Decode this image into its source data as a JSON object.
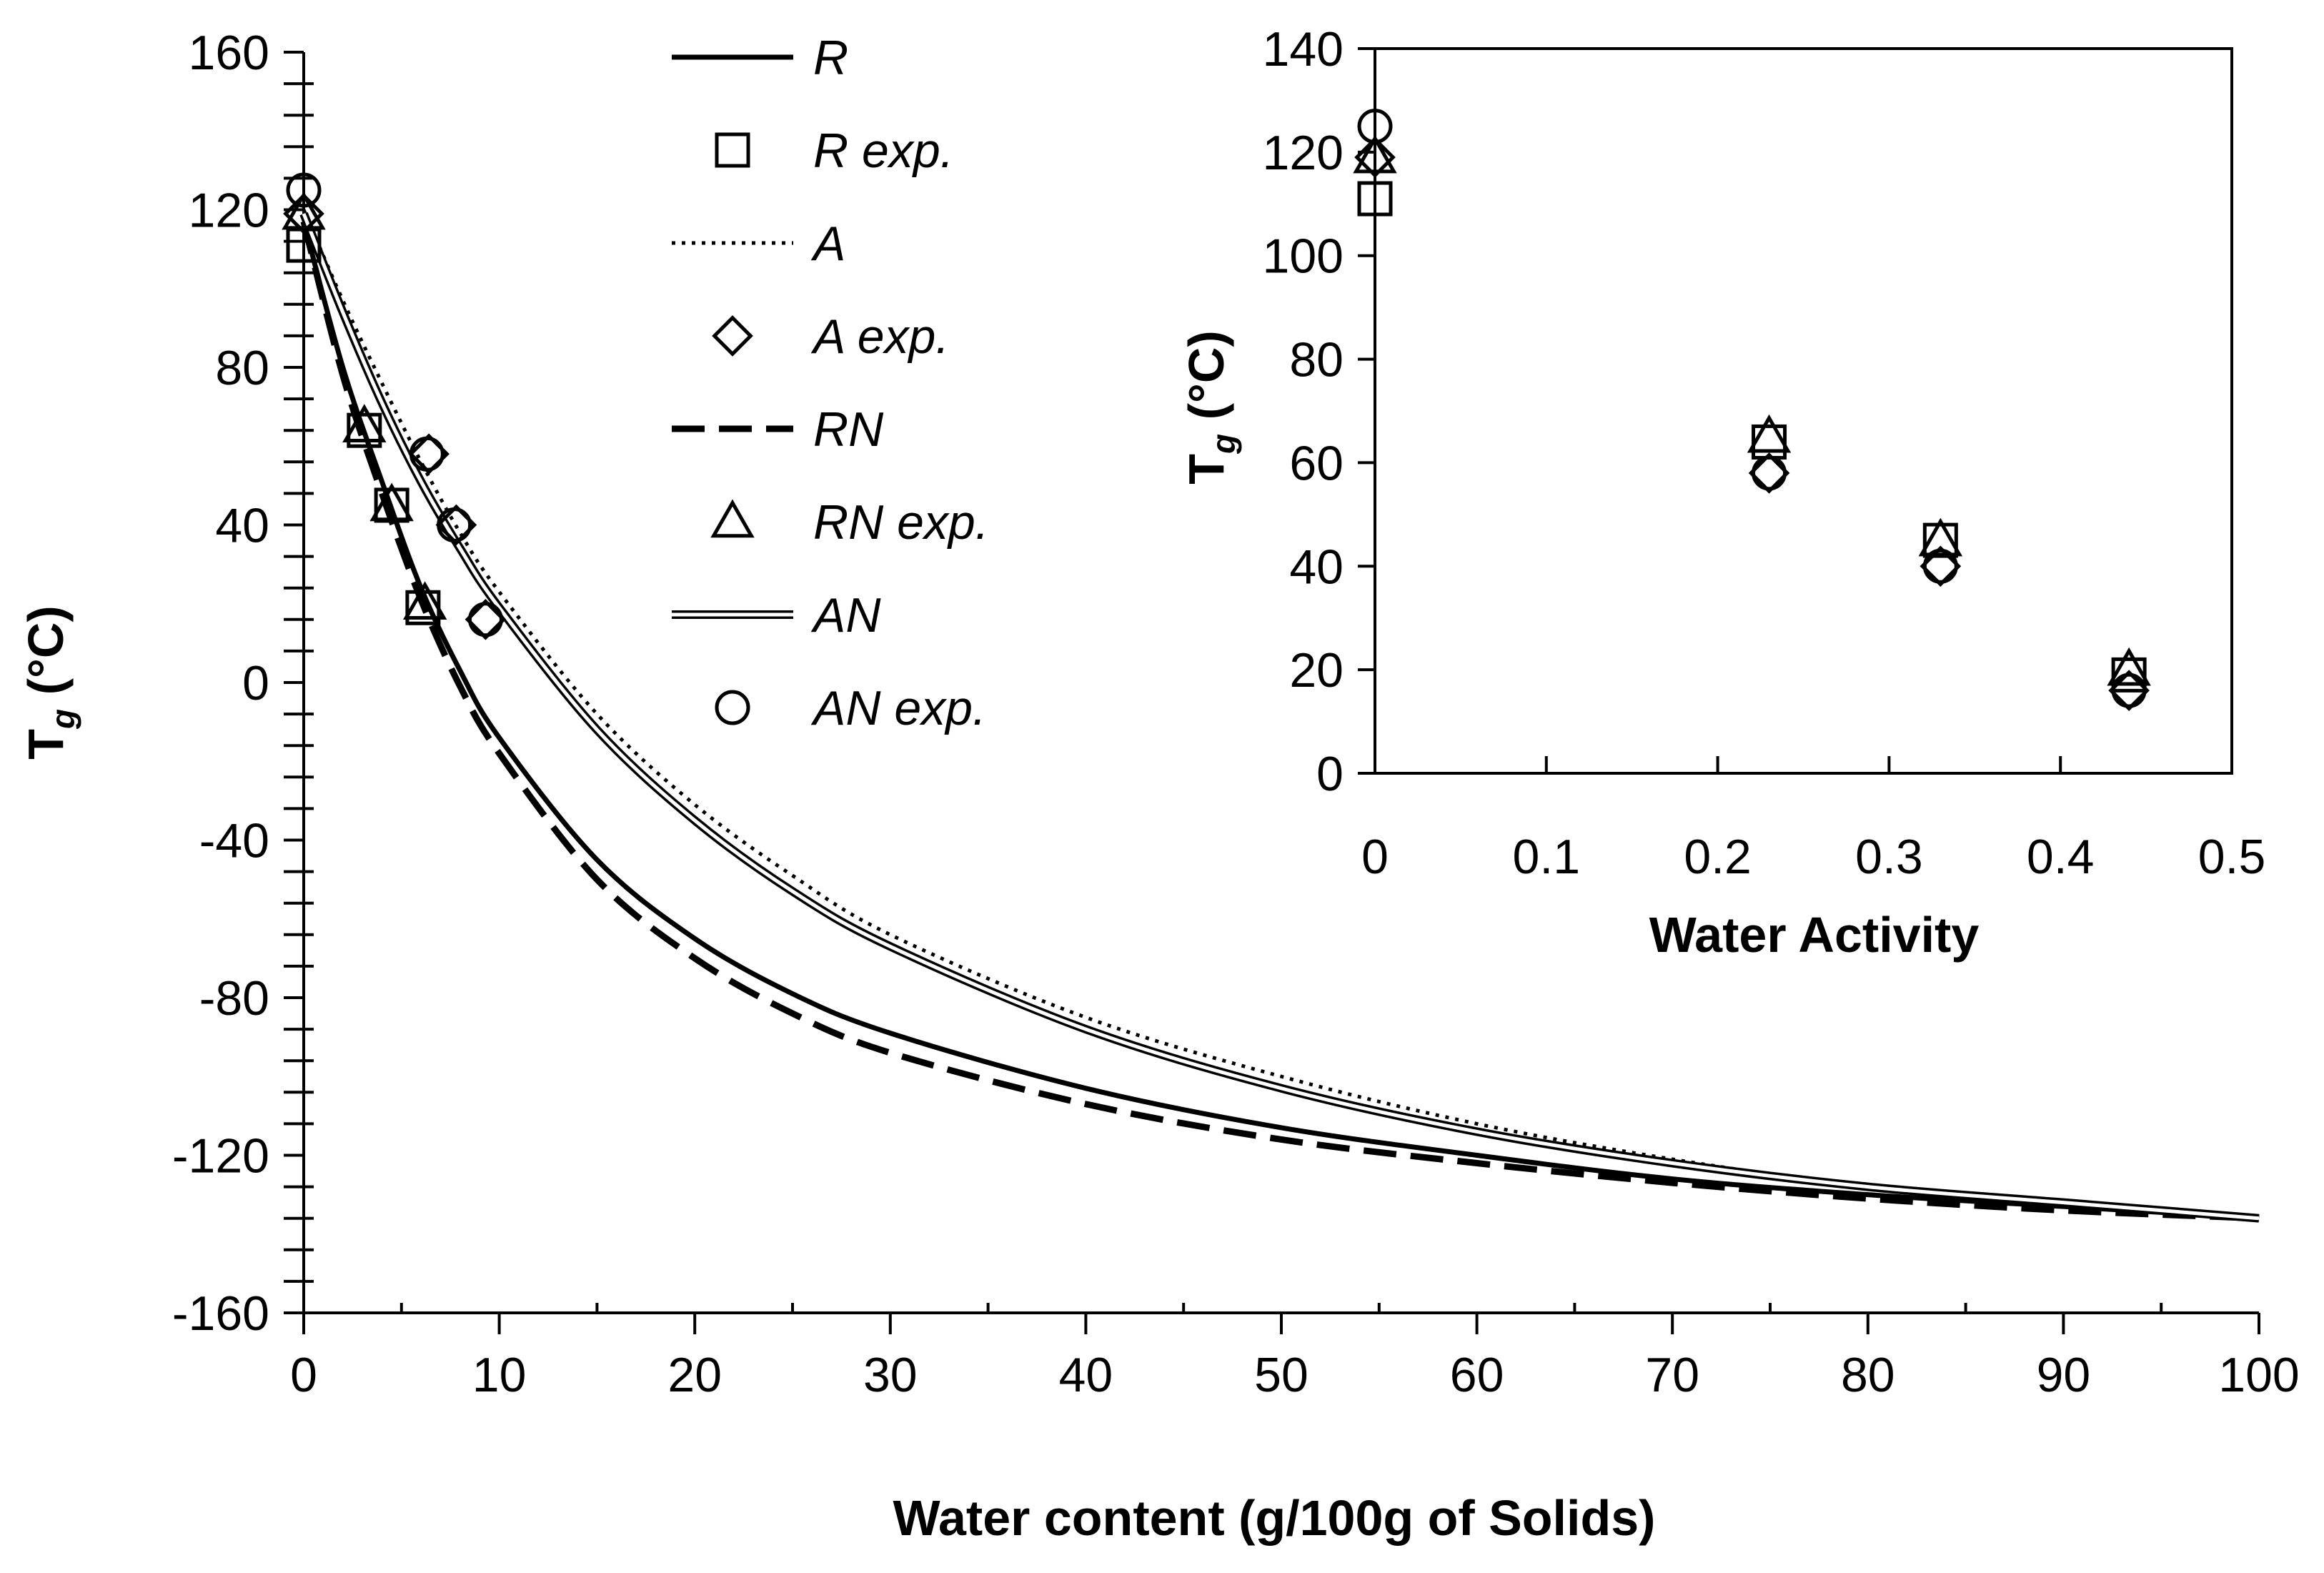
{
  "chart_data": [
    {
      "type": "line",
      "xlabel": "Water content (g/100g of Solids)",
      "ylabel_main": "T",
      "ylabel_sub": "g",
      "ylabel_unit": " (°C)",
      "xlim": [
        0,
        100
      ],
      "ylim": [
        -160,
        160
      ],
      "xticks": [
        0,
        10,
        20,
        30,
        40,
        50,
        60,
        70,
        80,
        90,
        100
      ],
      "yticks": [
        160,
        120,
        80,
        40,
        0,
        -40,
        -80,
        -120,
        -160
      ],
      "grid": false,
      "legend_position": "top-center",
      "series": [
        {
          "name": "R",
          "kind": "line",
          "style": "solid-thick",
          "x": [
            0,
            2,
            4,
            6,
            8,
            10,
            15,
            20,
            25,
            30,
            40,
            50,
            60,
            70,
            80,
            90,
            100
          ],
          "y": [
            117,
            80,
            51,
            24,
            3,
            -14,
            -45,
            -65,
            -79,
            -89,
            -103,
            -113,
            -120,
            -126,
            -130,
            -133,
            -136
          ]
        },
        {
          "name": "R exp.",
          "kind": "marker",
          "marker": "square",
          "x": [
            0,
            3.1,
            4.5,
            6.1
          ],
          "y": [
            111,
            64,
            45,
            19
          ]
        },
        {
          "name": "A",
          "kind": "line",
          "style": "dotted",
          "x": [
            0,
            2,
            4,
            6,
            8,
            10,
            15,
            20,
            25,
            30,
            40,
            50,
            60,
            70,
            80,
            90,
            100
          ],
          "y": [
            120,
            97,
            76,
            56,
            38,
            23,
            -8,
            -31,
            -49,
            -64,
            -85,
            -100,
            -112,
            -121,
            -128,
            -132,
            -136
          ]
        },
        {
          "name": "A exp.",
          "kind": "marker",
          "marker": "diamond",
          "x": [
            0,
            6.4,
            7.8,
            9.3
          ],
          "y": [
            119,
            58,
            40,
            16
          ]
        },
        {
          "name": "RN",
          "kind": "line",
          "style": "dashed",
          "x": [
            0,
            2,
            4,
            6,
            8,
            10,
            15,
            20,
            25,
            30,
            40,
            50,
            60,
            70,
            80,
            90,
            100
          ],
          "y": [
            117,
            78,
            48,
            21,
            -1,
            -18,
            -50,
            -70,
            -84,
            -94,
            -107,
            -116,
            -122,
            -127,
            -131,
            -134,
            -136
          ]
        },
        {
          "name": "RN exp.",
          "kind": "marker",
          "marker": "triangle",
          "x": [
            0,
            3.1,
            4.5,
            6.2
          ],
          "y": [
            119,
            65,
            45,
            20
          ]
        },
        {
          "name": "AN",
          "kind": "line",
          "style": "double",
          "x": [
            0,
            2,
            4,
            6,
            8,
            10,
            15,
            20,
            25,
            30,
            40,
            50,
            60,
            70,
            80,
            90,
            100
          ],
          "y": [
            119,
            94,
            71,
            51,
            34,
            19,
            -12,
            -35,
            -53,
            -67,
            -88,
            -103,
            -114,
            -122,
            -128,
            -132,
            -136
          ]
        },
        {
          "name": "AN exp.",
          "kind": "marker",
          "marker": "circle",
          "x": [
            0,
            6.3,
            7.7,
            9.3
          ],
          "y": [
            125,
            58,
            40,
            16
          ]
        }
      ]
    },
    {
      "type": "scatter",
      "xlabel": "Water Activity",
      "ylabel_main": "T",
      "ylabel_sub": "g",
      "ylabel_unit": " (°C)",
      "xlim": [
        0,
        0.5
      ],
      "ylim": [
        0,
        140
      ],
      "xticks": [
        0,
        0.1,
        0.2,
        0.3,
        0.4,
        0.5
      ],
      "xtick_labels": [
        "0",
        "0.1",
        "0.2",
        "0.3",
        "0.4",
        "0.5"
      ],
      "yticks": [
        0,
        20,
        40,
        60,
        80,
        100,
        120,
        140
      ],
      "grid": false,
      "series": [
        {
          "name": "R exp.",
          "marker": "square",
          "x": [
            0,
            0.23,
            0.33,
            0.44
          ],
          "y": [
            111,
            64,
            45,
            19
          ]
        },
        {
          "name": "A exp.",
          "marker": "diamond",
          "x": [
            0,
            0.23,
            0.33,
            0.44
          ],
          "y": [
            119,
            58,
            40,
            16
          ]
        },
        {
          "name": "RN exp.",
          "marker": "triangle",
          "x": [
            0,
            0.23,
            0.33,
            0.44
          ],
          "y": [
            119,
            65,
            45,
            20
          ]
        },
        {
          "name": "AN exp.",
          "marker": "circle",
          "x": [
            0,
            0.23,
            0.33,
            0.44
          ],
          "y": [
            125,
            58,
            40,
            16
          ]
        }
      ]
    }
  ]
}
